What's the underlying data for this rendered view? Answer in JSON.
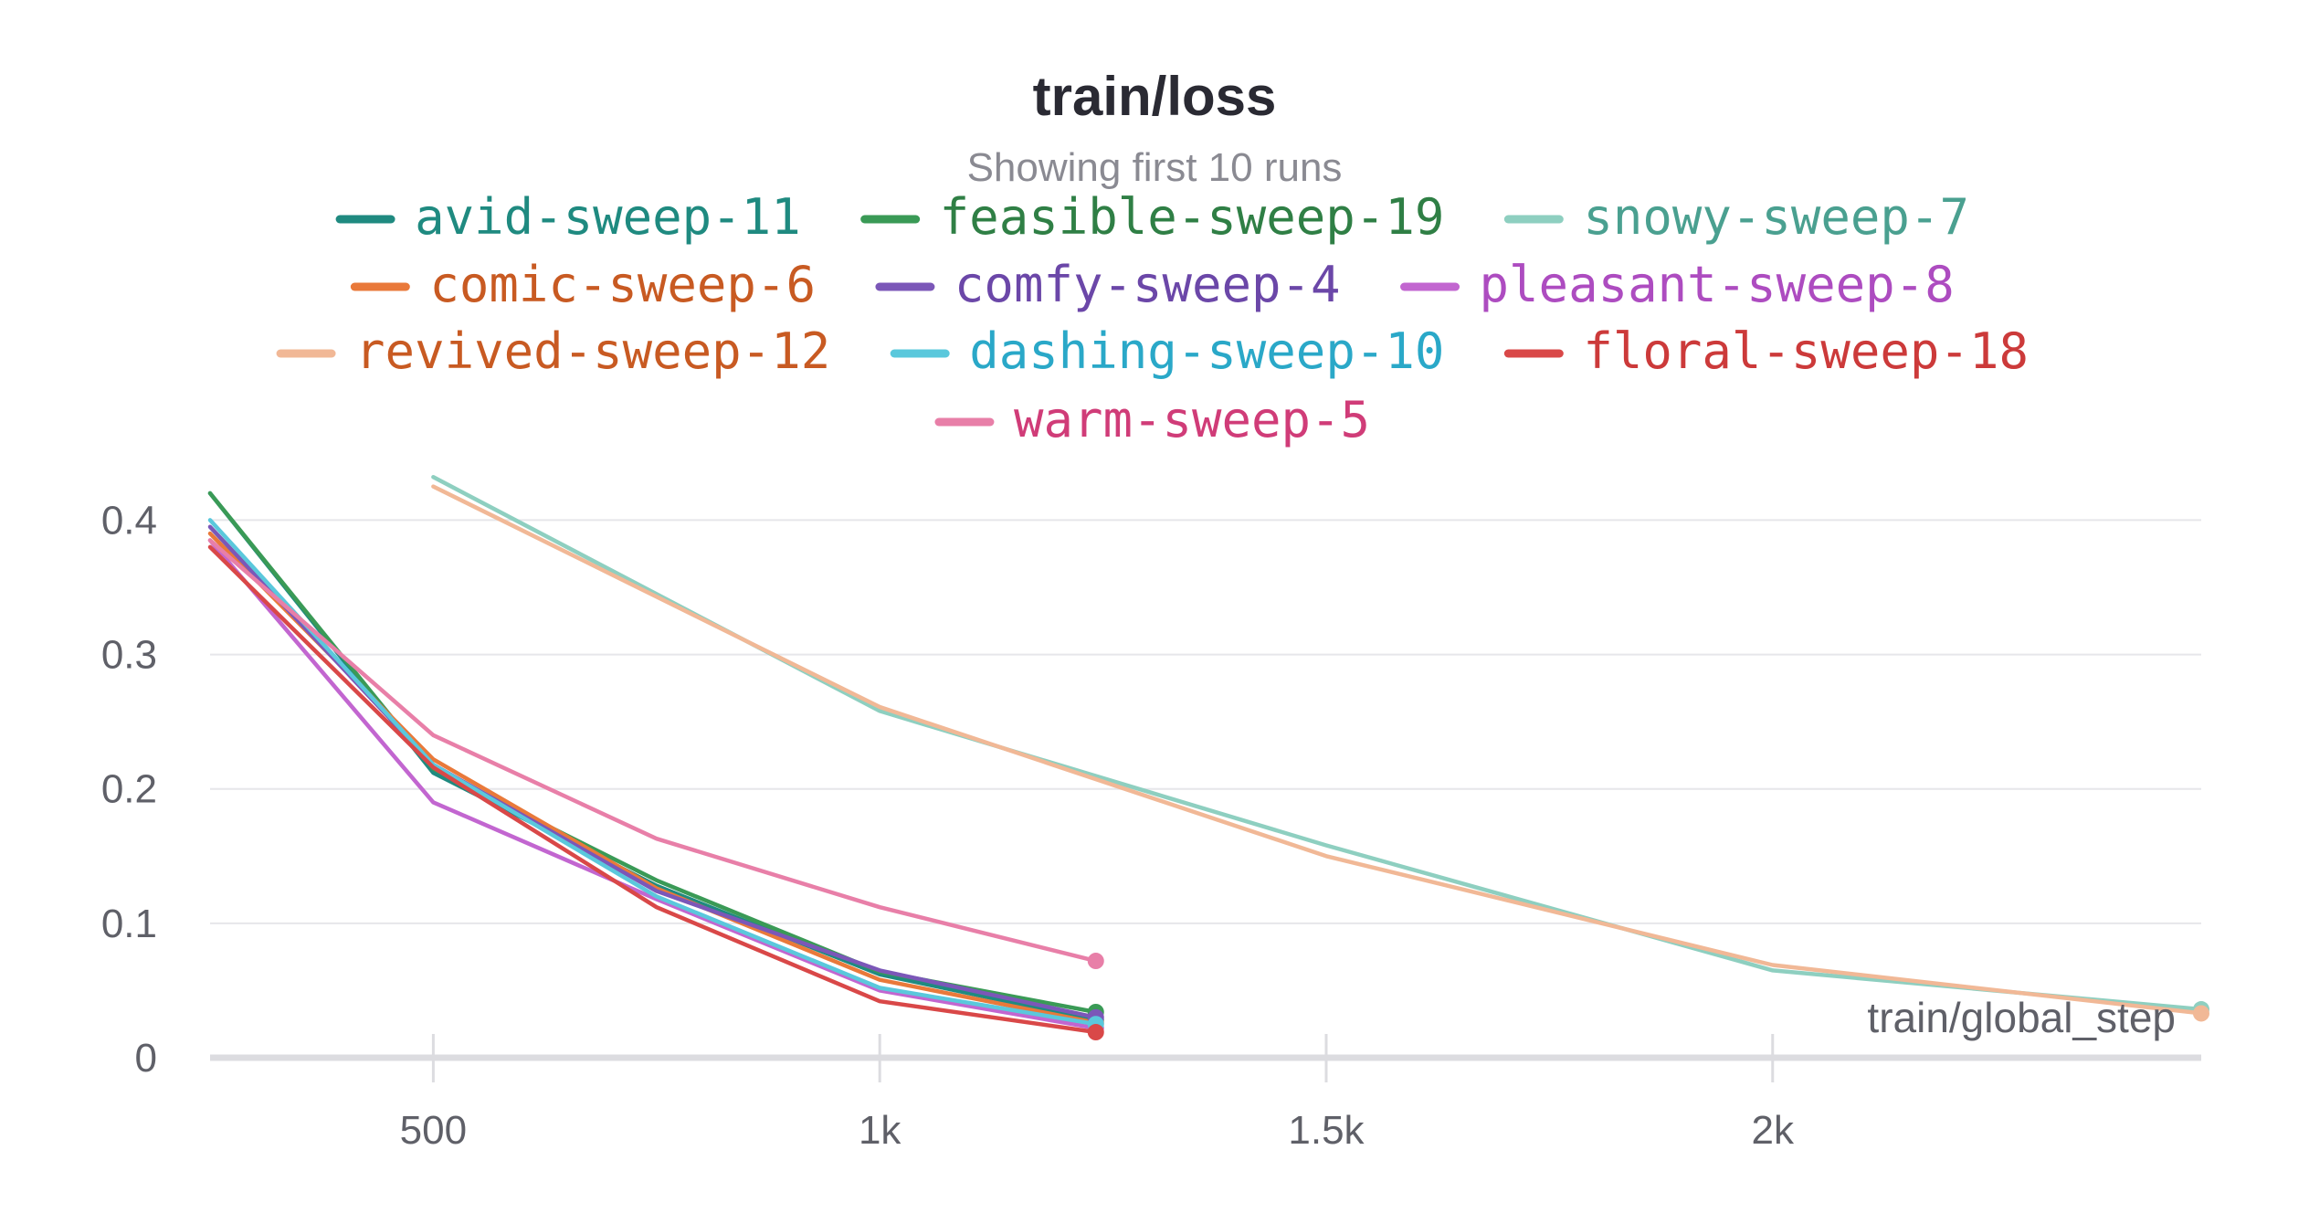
{
  "chart_data": {
    "type": "line",
    "title": "train/loss",
    "subtitle": "Showing first 10 runs",
    "xlabel": "train/global_step",
    "ylabel": "",
    "xlim": [
      250,
      2480
    ],
    "ylim": [
      0,
      0.42
    ],
    "x_ticks": [
      500,
      1000,
      1500,
      2000
    ],
    "x_tick_labels": [
      "500",
      "1k",
      "1.5k",
      "2k"
    ],
    "y_ticks": [
      0,
      0.1,
      0.2,
      0.3,
      0.4
    ],
    "y_tick_labels": [
      "0",
      "0.1",
      "0.2",
      "0.3",
      "0.4"
    ],
    "grid": "horizontal",
    "legend_position": "top",
    "series": [
      {
        "name": "avid-sweep-11",
        "color": "#1f8a80",
        "text_color": "#1f8a80",
        "x": [
          250,
          500,
          750,
          1000,
          1242
        ],
        "y": [
          0.42,
          0.212,
          0.128,
          0.062,
          0.028
        ],
        "end_marker": true
      },
      {
        "name": "feasible-sweep-19",
        "color": "#3a9a56",
        "text_color": "#2f7f45",
        "x": [
          250,
          500,
          750,
          1000,
          1242
        ],
        "y": [
          0.42,
          0.215,
          0.132,
          0.064,
          0.034
        ],
        "end_marker": true
      },
      {
        "name": "snowy-sweep-7",
        "color": "#8ecfc0",
        "text_color": "#4aa090",
        "x": [
          500,
          1000,
          1500,
          2000,
          2480
        ],
        "y": [
          0.432,
          0.258,
          0.158,
          0.065,
          0.036
        ],
        "end_marker": true
      },
      {
        "name": "comic-sweep-6",
        "color": "#e9793a",
        "text_color": "#c85a22",
        "x": [
          250,
          500,
          750,
          1000,
          1242
        ],
        "y": [
          0.39,
          0.222,
          0.126,
          0.058,
          0.026
        ],
        "end_marker": true
      },
      {
        "name": "comfy-sweep-4",
        "color": "#7b57b8",
        "text_color": "#6b47a8",
        "x": [
          250,
          500,
          750,
          1000,
          1242
        ],
        "y": [
          0.395,
          0.218,
          0.124,
          0.065,
          0.03
        ],
        "end_marker": true
      },
      {
        "name": "pleasant-sweep-8",
        "color": "#c266d0",
        "text_color": "#ad4cc0",
        "x": [
          250,
          500,
          750,
          1000,
          1242
        ],
        "y": [
          0.385,
          0.19,
          0.118,
          0.05,
          0.022
        ],
        "end_marker": true
      },
      {
        "name": "revived-sweep-12",
        "color": "#f1b896",
        "text_color": "#c85a22",
        "x": [
          500,
          1000,
          1500,
          2000,
          2480
        ],
        "y": [
          0.425,
          0.261,
          0.15,
          0.069,
          0.033
        ],
        "end_marker": true
      },
      {
        "name": "dashing-sweep-10",
        "color": "#5ac8dc",
        "text_color": "#2aa8c8",
        "x": [
          250,
          500,
          750,
          1000,
          1242
        ],
        "y": [
          0.4,
          0.218,
          0.12,
          0.052,
          0.025
        ],
        "end_marker": true
      },
      {
        "name": "floral-sweep-18",
        "color": "#d94848",
        "text_color": "#cc3a3a",
        "x": [
          250,
          500,
          750,
          1000,
          1242
        ],
        "y": [
          0.38,
          0.216,
          0.112,
          0.042,
          0.019
        ],
        "end_marker": true
      },
      {
        "name": "warm-sweep-5",
        "color": "#e87fa8",
        "text_color": "#d03c78",
        "x": [
          250,
          500,
          750,
          1000,
          1242
        ],
        "y": [
          0.385,
          0.24,
          0.163,
          0.112,
          0.072
        ],
        "end_marker": true
      }
    ]
  }
}
